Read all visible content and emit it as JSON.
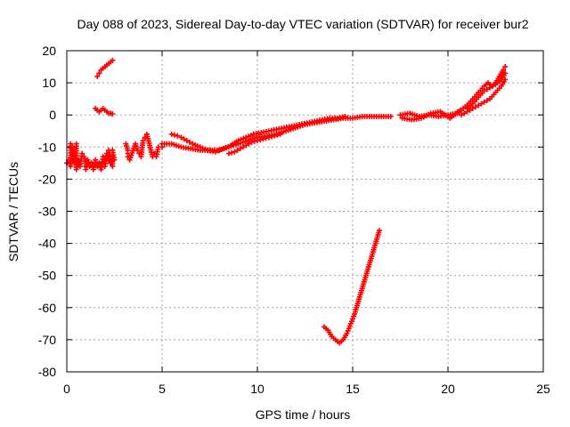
{
  "chart_data": {
    "type": "scatter",
    "title": "Day 088 of 2023, Sidereal Day-to-day VTEC variation (SDTVAR) for receiver bur2",
    "xlabel": "GPS time / hours",
    "ylabel": "SDTVAR / TECUs",
    "xlim": [
      0,
      25
    ],
    "ylim": [
      -80,
      20
    ],
    "xticks": [
      "0",
      "5",
      "10",
      "15",
      "20",
      "25"
    ],
    "yticks": [
      "20",
      "10",
      "0",
      "-10",
      "-20",
      "-30",
      "-40",
      "-50",
      "-60",
      "-70",
      "-80"
    ],
    "grid": true,
    "marker": "+",
    "color": "#ff0000",
    "series": [
      {
        "points": [
          [
            0.0,
            -15
          ],
          [
            0.1,
            -14
          ],
          [
            0.2,
            -16
          ],
          [
            0.2,
            -9
          ],
          [
            0.3,
            -10
          ],
          [
            0.3,
            -13
          ],
          [
            0.4,
            -15
          ],
          [
            0.5,
            -9
          ],
          [
            0.5,
            -17
          ],
          [
            0.6,
            -14
          ],
          [
            0.7,
            -16
          ],
          [
            0.8,
            -12
          ],
          [
            0.9,
            -13
          ],
          [
            1.0,
            -15
          ],
          [
            1.0,
            -17
          ],
          [
            1.1,
            -14
          ],
          [
            1.2,
            -16
          ],
          [
            1.3,
            -15
          ],
          [
            1.4,
            -17
          ],
          [
            1.5,
            -14
          ],
          [
            1.6,
            -16
          ],
          [
            1.7,
            -15
          ],
          [
            1.8,
            -17
          ],
          [
            1.9,
            -13
          ],
          [
            2.0,
            -14
          ],
          [
            2.0,
            -16
          ],
          [
            2.1,
            -12
          ],
          [
            2.2,
            -14
          ],
          [
            2.3,
            -15
          ],
          [
            2.4,
            -13
          ],
          [
            2.4,
            -16
          ],
          [
            2.2,
            -11
          ],
          [
            2.4,
            -11
          ],
          [
            2.5,
            -14
          ]
        ]
      },
      {
        "points": [
          [
            1.5,
            2
          ],
          [
            1.6,
            1.5
          ],
          [
            1.7,
            1
          ],
          [
            1.8,
            1.5
          ],
          [
            1.9,
            2
          ],
          [
            2.0,
            1.5
          ],
          [
            2.1,
            1
          ],
          [
            2.2,
            0.5
          ],
          [
            2.3,
            0.5
          ],
          [
            2.4,
            0.3
          ]
        ]
      },
      {
        "points": [
          [
            1.6,
            12
          ],
          [
            1.7,
            13
          ],
          [
            1.8,
            14
          ],
          [
            1.9,
            14.5
          ],
          [
            2.0,
            15
          ],
          [
            2.1,
            15.5
          ],
          [
            2.2,
            16
          ],
          [
            2.3,
            16.5
          ],
          [
            2.4,
            17
          ]
        ]
      },
      {
        "points": [
          [
            3.1,
            -9
          ],
          [
            3.2,
            -11
          ],
          [
            3.2,
            -13
          ],
          [
            3.3,
            -14
          ],
          [
            3.6,
            -9
          ],
          [
            3.7,
            -11
          ],
          [
            3.8,
            -12
          ],
          [
            3.9,
            -13
          ],
          [
            4.0,
            -8
          ],
          [
            4.1,
            -7
          ],
          [
            4.2,
            -6
          ],
          [
            4.5,
            -13
          ],
          [
            4.6,
            -12
          ],
          [
            4.7,
            -13
          ],
          [
            4.8,
            -10
          ],
          [
            5.0,
            -10
          ]
        ]
      },
      {
        "points": [
          [
            5.0,
            -9
          ],
          [
            5.5,
            -9
          ],
          [
            6.0,
            -10
          ],
          [
            6.5,
            -10.5
          ],
          [
            7.0,
            -11
          ],
          [
            7.5,
            -11
          ],
          [
            8.0,
            -11
          ],
          [
            8.5,
            -10
          ],
          [
            9.0,
            -9
          ],
          [
            9.5,
            -8
          ],
          [
            10.0,
            -7
          ],
          [
            10.5,
            -6.5
          ],
          [
            11.0,
            -6
          ],
          [
            11.5,
            -5
          ],
          [
            12.0,
            -4
          ],
          [
            12.5,
            -3
          ],
          [
            13.0,
            -2.5
          ],
          [
            13.5,
            -2
          ],
          [
            14.0,
            -1.5
          ],
          [
            14.5,
            -1
          ],
          [
            15.0,
            -1
          ],
          [
            15.5,
            -0.5
          ],
          [
            16.0,
            -0.5
          ],
          [
            16.5,
            -0.5
          ],
          [
            17.0,
            -0.5
          ]
        ]
      },
      {
        "points": [
          [
            5.5,
            -6
          ],
          [
            5.8,
            -6.5
          ],
          [
            6.0,
            -7
          ],
          [
            6.3,
            -8
          ],
          [
            6.6,
            -9
          ],
          [
            7.0,
            -10
          ],
          [
            7.4,
            -11
          ],
          [
            7.8,
            -11.5
          ],
          [
            8.2,
            -10.5
          ],
          [
            8.6,
            -9.5
          ],
          [
            9.0,
            -8
          ],
          [
            9.4,
            -7
          ],
          [
            9.8,
            -6
          ],
          [
            10.2,
            -5.5
          ],
          [
            10.6,
            -5
          ],
          [
            11.0,
            -4.5
          ],
          [
            11.4,
            -4
          ],
          [
            11.8,
            -3.5
          ],
          [
            12.2,
            -3
          ],
          [
            12.6,
            -2.5
          ],
          [
            13.0,
            -2
          ],
          [
            13.4,
            -1.5
          ],
          [
            13.8,
            -1
          ],
          [
            14.2,
            -1
          ],
          [
            14.6,
            -0.5
          ]
        ]
      },
      {
        "points": [
          [
            8.5,
            -12
          ],
          [
            8.8,
            -11.5
          ],
          [
            9.1,
            -10.5
          ],
          [
            9.4,
            -9.5
          ],
          [
            9.7,
            -8.5
          ],
          [
            10.0,
            -8
          ],
          [
            10.3,
            -7.5
          ],
          [
            10.6,
            -7
          ],
          [
            10.9,
            -6.5
          ],
          [
            11.2,
            -6
          ]
        ]
      },
      {
        "points": [
          [
            17.5,
            0
          ],
          [
            18.0,
            0.5
          ],
          [
            18.5,
            -0.5
          ],
          [
            19.0,
            0
          ],
          [
            19.5,
            -0.5
          ],
          [
            20.0,
            0
          ],
          [
            20.5,
            0.5
          ]
        ]
      },
      {
        "points": [
          [
            17.6,
            -1
          ],
          [
            18.1,
            -1.5
          ],
          [
            18.6,
            -1
          ],
          [
            19.1,
            0.5
          ],
          [
            19.6,
            1
          ],
          [
            20.1,
            -1
          ],
          [
            20.6,
            1
          ]
        ]
      },
      {
        "points": [
          [
            20.5,
            1
          ],
          [
            20.8,
            2
          ],
          [
            21.0,
            3
          ],
          [
            21.3,
            5
          ],
          [
            21.6,
            7
          ],
          [
            21.9,
            9
          ],
          [
            22.1,
            10
          ],
          [
            22.3,
            9
          ],
          [
            22.5,
            10
          ],
          [
            22.7,
            12
          ],
          [
            22.9,
            14
          ],
          [
            23.0,
            15
          ]
        ]
      },
      {
        "points": [
          [
            20.7,
            0
          ],
          [
            21.0,
            1
          ],
          [
            21.3,
            2
          ],
          [
            21.6,
            3
          ],
          [
            21.9,
            4
          ],
          [
            22.2,
            5
          ],
          [
            22.5,
            7
          ],
          [
            22.8,
            9
          ],
          [
            23.0,
            11
          ]
        ]
      },
      {
        "points": [
          [
            21.0,
            2
          ],
          [
            21.3,
            3.5
          ],
          [
            21.6,
            5.5
          ],
          [
            21.9,
            7.5
          ],
          [
            22.2,
            8.5
          ],
          [
            22.5,
            9.5
          ],
          [
            22.8,
            11
          ],
          [
            23.0,
            13
          ]
        ]
      },
      {
        "points": [
          [
            13.5,
            -66
          ],
          [
            13.7,
            -67
          ],
          [
            13.9,
            -69
          ],
          [
            14.1,
            -70
          ],
          [
            14.3,
            -71
          ],
          [
            14.5,
            -70
          ],
          [
            14.7,
            -68
          ],
          [
            14.9,
            -65
          ],
          [
            15.1,
            -62
          ],
          [
            15.3,
            -58
          ],
          [
            15.5,
            -54
          ],
          [
            15.7,
            -50
          ],
          [
            15.9,
            -46
          ],
          [
            16.1,
            -42
          ],
          [
            16.3,
            -38
          ],
          [
            16.4,
            -36
          ]
        ]
      }
    ]
  }
}
